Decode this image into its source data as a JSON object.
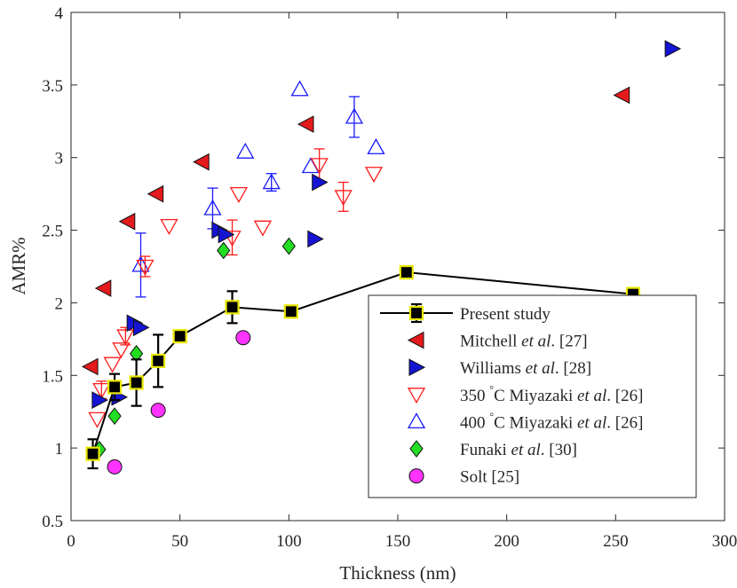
{
  "chart_data": {
    "type": "scatter",
    "xlabel": "Thickness (nm)",
    "ylabel": "AMR%",
    "xlim": [
      0,
      300
    ],
    "ylim": [
      0.5,
      4
    ],
    "xticks": [
      0,
      50,
      100,
      150,
      200,
      250,
      300
    ],
    "yticks": [
      0.5,
      1,
      1.5,
      2,
      2.5,
      3,
      3.5,
      4
    ],
    "xtick_labels": [
      "0",
      "50",
      "100",
      "150",
      "200",
      "250",
      "300"
    ],
    "ytick_labels": [
      "0.5",
      "1",
      "1.5",
      "2",
      "2.5",
      "3",
      "3.5",
      "4"
    ],
    "grid": false,
    "legend_position": "bottom-right",
    "series": [
      {
        "key": "present",
        "name": "Present study",
        "legend": [
          "Present study"
        ],
        "marker": "square",
        "line": true,
        "color": "#000000",
        "edge": "#e8e800",
        "points": [
          {
            "x": 10,
            "y": 0.96,
            "err": 0.1
          },
          {
            "x": 20,
            "y": 1.42,
            "err": 0.09
          },
          {
            "x": 30,
            "y": 1.45,
            "err": 0.16
          },
          {
            "x": 40,
            "y": 1.6,
            "err": 0.18
          },
          {
            "x": 50,
            "y": 1.77,
            "err": 0.03
          },
          {
            "x": 74,
            "y": 1.97,
            "err": 0.11
          },
          {
            "x": 101,
            "y": 1.94,
            "err": 0.03
          },
          {
            "x": 154,
            "y": 2.21,
            "err": 0.03
          },
          {
            "x": 258,
            "y": 2.06,
            "err": 0.02
          }
        ]
      },
      {
        "key": "mitchell",
        "name": "Mitchell et al. [27]",
        "legend": [
          "Mitchell ",
          "et al",
          ". [27]"
        ],
        "marker": "triangle-left",
        "color": "#e41a1c",
        "points": [
          {
            "x": 9,
            "y": 1.56
          },
          {
            "x": 15,
            "y": 2.1
          },
          {
            "x": 26,
            "y": 2.56
          },
          {
            "x": 39,
            "y": 2.75
          },
          {
            "x": 60,
            "y": 2.97
          },
          {
            "x": 108,
            "y": 3.23
          },
          {
            "x": 253,
            "y": 3.43
          }
        ]
      },
      {
        "key": "williams",
        "name": "Williams et al. [28]",
        "legend": [
          "Williams ",
          "et al",
          ". [28]"
        ],
        "marker": "triangle-right",
        "color": "#1414d2",
        "points": [
          {
            "x": 13,
            "y": 1.33
          },
          {
            "x": 22,
            "y": 1.35
          },
          {
            "x": 29,
            "y": 1.86
          },
          {
            "x": 32,
            "y": 1.83
          },
          {
            "x": 68,
            "y": 2.5
          },
          {
            "x": 71,
            "y": 2.47
          },
          {
            "x": 112,
            "y": 2.44
          },
          {
            "x": 114,
            "y": 2.83
          },
          {
            "x": 276,
            "y": 3.75
          }
        ]
      },
      {
        "key": "m350",
        "name": "350 °C Miyazaki et al. [26]",
        "legend": [
          "350 ",
          "°",
          "C Miyazaki ",
          "et al",
          ". [26]"
        ],
        "marker": "triangle-down-open",
        "color": "#ff1a1a",
        "points": [
          {
            "x": 12,
            "y": 1.2
          },
          {
            "x": 14,
            "y": 1.4,
            "err": 0.06
          },
          {
            "x": 19,
            "y": 1.58
          },
          {
            "x": 23,
            "y": 1.68
          },
          {
            "x": 25,
            "y": 1.77,
            "err": 0.06
          },
          {
            "x": 34,
            "y": 2.25,
            "err": 0.07
          },
          {
            "x": 45,
            "y": 2.53
          },
          {
            "x": 74,
            "y": 2.45,
            "err": 0.12
          },
          {
            "x": 77,
            "y": 2.75
          },
          {
            "x": 88,
            "y": 2.52
          },
          {
            "x": 114,
            "y": 2.95,
            "err": 0.11
          },
          {
            "x": 125,
            "y": 2.73,
            "err": 0.1
          },
          {
            "x": 139,
            "y": 2.89
          }
        ]
      },
      {
        "key": "m400",
        "name": "400 °C Miyazaki et al. [26]",
        "legend": [
          "400 ",
          "°",
          "C Miyazaki ",
          "et al",
          ". [26]"
        ],
        "marker": "triangle-up-open",
        "color": "#1a1aff",
        "points": [
          {
            "x": 32,
            "y": 2.26,
            "err": 0.22
          },
          {
            "x": 65,
            "y": 2.65,
            "err": 0.14
          },
          {
            "x": 80,
            "y": 3.04
          },
          {
            "x": 92,
            "y": 2.83,
            "err": 0.06
          },
          {
            "x": 105,
            "y": 3.47
          },
          {
            "x": 110,
            "y": 2.94
          },
          {
            "x": 130,
            "y": 3.28,
            "err": 0.14
          },
          {
            "x": 140,
            "y": 3.07
          }
        ]
      },
      {
        "key": "funaki",
        "name": "Funaki et al. [30]",
        "legend": [
          "Funaki ",
          "et al",
          ". [30]"
        ],
        "marker": "diamond",
        "color": "#22dd22",
        "points": [
          {
            "x": 13,
            "y": 0.99
          },
          {
            "x": 20,
            "y": 1.22
          },
          {
            "x": 30,
            "y": 1.65
          },
          {
            "x": 70,
            "y": 2.36
          },
          {
            "x": 100,
            "y": 2.39
          }
        ]
      },
      {
        "key": "solt",
        "name": "Solt [25]",
        "legend": [
          "Solt [25]"
        ],
        "marker": "circle",
        "color": "#ff33ff",
        "points": [
          {
            "x": 20,
            "y": 0.87
          },
          {
            "x": 40,
            "y": 1.26
          },
          {
            "x": 79,
            "y": 1.76
          }
        ]
      }
    ]
  }
}
